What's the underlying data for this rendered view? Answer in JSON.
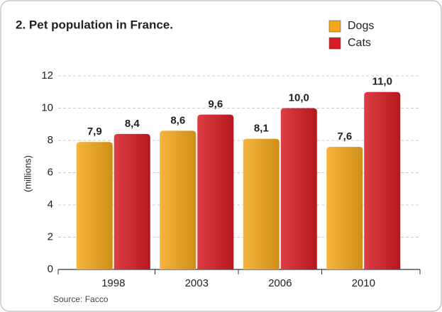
{
  "chart_data": {
    "type": "bar",
    "title": "2. Pet population in France.",
    "y_label": "(millions)",
    "source": "Source: Facco",
    "categories": [
      "1998",
      "2003",
      "2006",
      "2010"
    ],
    "series": [
      {
        "name": "Dogs",
        "color": "#f4a81c",
        "values": [
          7.9,
          8.6,
          8.1,
          7.6
        ],
        "value_labels": [
          "7,9",
          "8,6",
          "8,1",
          "7,6"
        ]
      },
      {
        "name": "Cats",
        "color": "#d61c24",
        "values": [
          8.4,
          9.6,
          10.0,
          11.0
        ],
        "value_labels": [
          "8,4",
          "9,6",
          "10,0",
          "11,0"
        ]
      }
    ],
    "ylim": [
      0,
      12
    ],
    "yticks": [
      0,
      2,
      4,
      6,
      8,
      10,
      12
    ],
    "grid": true,
    "legend": "top-right"
  }
}
